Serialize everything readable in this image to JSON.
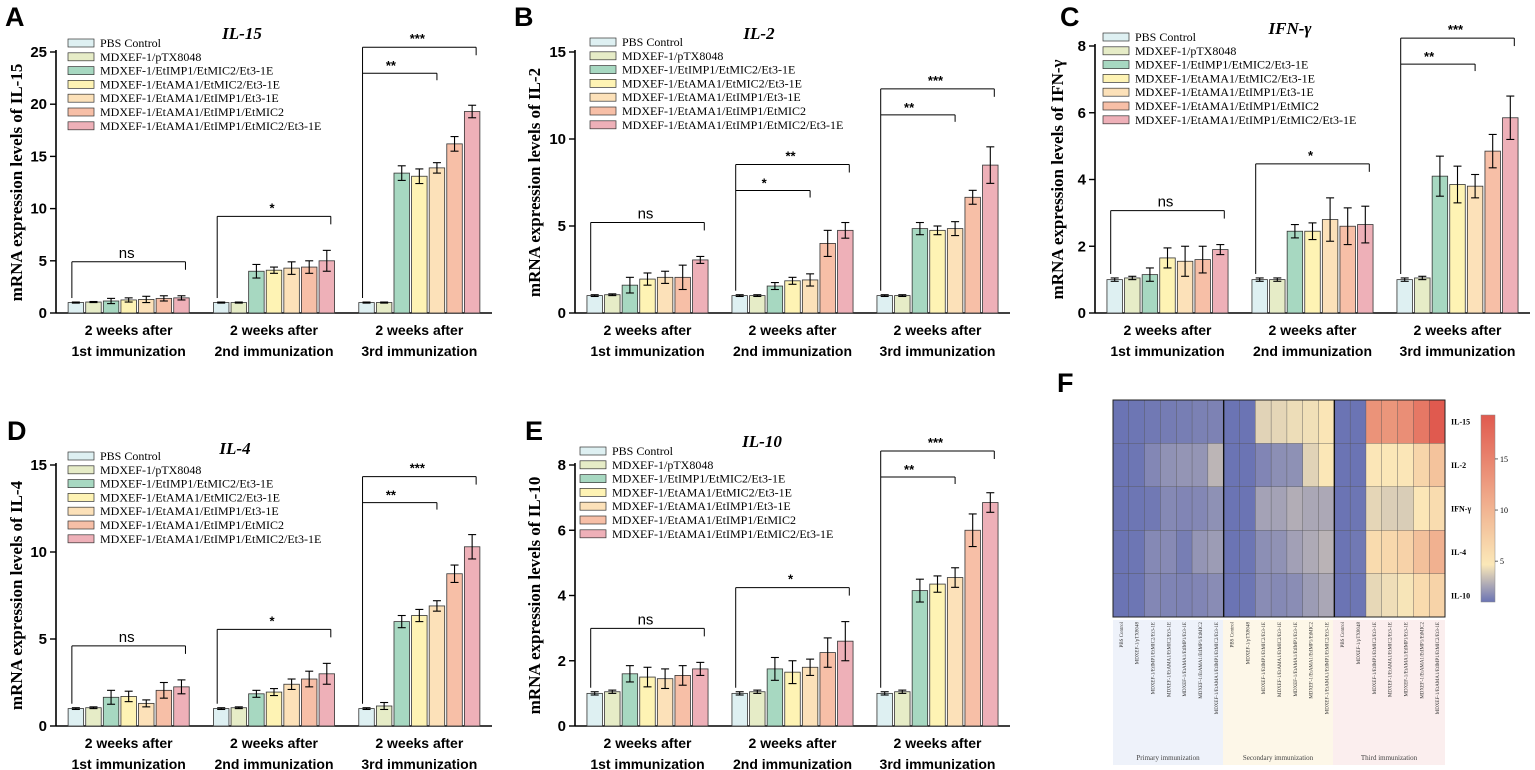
{
  "colors": {
    "groups": [
      "#def0f2",
      "#e6ecc7",
      "#a7d8c1",
      "#fef3b4",
      "#fce1b9",
      "#f7bfa7",
      "#eeb0b8"
    ],
    "heatmap_low": "#6b74b4",
    "heatmap_mid": "#fbe8b8",
    "heatmap_high": "#e05a4f"
  },
  "group_labels": [
    "PBS Control",
    "MDXEF-1/pTX8048",
    "MDXEF-1/EtIMP1/EtMIC2/Et3-1E",
    "MDXEF-1/EtAMA1/EtMIC2/Et3-1E",
    "MDXEF-1/EtAMA1/EtIMP1/Et3-1E",
    "MDXEF-1/EtAMA1/EtIMP1/EtMIC2",
    "MDXEF-1/EtAMA1/EtIMP1/EtMIC2/Et3-1E"
  ],
  "chart_data": [
    {
      "panel": "A",
      "type": "bar",
      "title": "IL-15",
      "ylabel": "mRNA expression levels of IL-15",
      "ylim": [
        0,
        25
      ],
      "yticks": [
        0,
        5,
        10,
        15,
        20,
        25
      ],
      "categories": [
        [
          "2 weeks after",
          "1st immunization"
        ],
        [
          "2 weeks after",
          "2nd immunization"
        ],
        [
          "2 weeks after",
          "3rd immunization"
        ]
      ],
      "values": [
        [
          1.0,
          1.05,
          1.15,
          1.25,
          1.3,
          1.4,
          1.45
        ],
        [
          1.0,
          1.0,
          4.0,
          4.1,
          4.3,
          4.4,
          5.0
        ],
        [
          1.0,
          1.0,
          13.4,
          13.1,
          13.9,
          16.2,
          19.3
        ]
      ],
      "errors": [
        [
          0.05,
          0.05,
          0.25,
          0.2,
          0.3,
          0.25,
          0.2
        ],
        [
          0.05,
          0.05,
          0.65,
          0.3,
          0.6,
          0.6,
          1.0
        ],
        [
          0.05,
          0.05,
          0.7,
          0.7,
          0.5,
          0.7,
          0.6
        ]
      ],
      "significance": [
        "ns",
        "*",
        "***"
      ],
      "inner_significance": [
        null,
        null,
        "**"
      ]
    },
    {
      "panel": "B",
      "type": "bar",
      "title": "IL-2",
      "ylabel": "mRNA expression levels of IL-2",
      "ylim": [
        0,
        15
      ],
      "yticks": [
        0,
        5,
        10,
        15
      ],
      "categories": [
        [
          "2 weeks after",
          "1st immunization"
        ],
        [
          "2 weeks after",
          "2nd immunization"
        ],
        [
          "2 weeks after",
          "3rd immunization"
        ]
      ],
      "values": [
        [
          1.0,
          1.05,
          1.6,
          1.95,
          2.05,
          2.05,
          3.05
        ],
        [
          1.0,
          1.0,
          1.55,
          1.85,
          1.9,
          4.0,
          4.75
        ],
        [
          1.0,
          1.0,
          4.85,
          4.75,
          4.85,
          6.65,
          8.5
        ]
      ],
      "errors": [
        [
          0.05,
          0.05,
          0.45,
          0.35,
          0.35,
          0.7,
          0.2
        ],
        [
          0.05,
          0.05,
          0.2,
          0.2,
          0.35,
          0.75,
          0.45
        ],
        [
          0.05,
          0.05,
          0.35,
          0.25,
          0.4,
          0.4,
          1.05
        ]
      ],
      "significance": [
        "ns",
        "**",
        "***"
      ],
      "inner_significance": [
        null,
        "*",
        "**"
      ]
    },
    {
      "panel": "C",
      "type": "bar",
      "title": "IFN-γ",
      "ylabel": "mRNA expression levels of IFN-γ",
      "ylim": [
        0,
        8
      ],
      "yticks": [
        0,
        2,
        4,
        6,
        8
      ],
      "categories": [
        [
          "2 weeks after",
          "1st immunization"
        ],
        [
          "2 weeks after",
          "2nd immunization"
        ],
        [
          "2 weeks after",
          "3rd immunization"
        ]
      ],
      "values": [
        [
          1.0,
          1.05,
          1.15,
          1.65,
          1.55,
          1.6,
          1.9
        ],
        [
          1.0,
          1.0,
          2.45,
          2.45,
          2.8,
          2.6,
          2.65
        ],
        [
          1.0,
          1.05,
          4.1,
          3.85,
          3.8,
          4.85,
          5.85
        ]
      ],
      "errors": [
        [
          0.05,
          0.05,
          0.2,
          0.3,
          0.45,
          0.4,
          0.15
        ],
        [
          0.05,
          0.05,
          0.2,
          0.25,
          0.65,
          0.55,
          0.55
        ],
        [
          0.05,
          0.05,
          0.6,
          0.55,
          0.35,
          0.5,
          0.65
        ]
      ],
      "significance": [
        "ns",
        "*",
        "***"
      ],
      "inner_significance": [
        null,
        null,
        "**"
      ]
    },
    {
      "panel": "D",
      "type": "bar",
      "title": "IL-4",
      "ylabel": "mRNA expression levels of IL-4",
      "ylim": [
        0,
        15
      ],
      "yticks": [
        0,
        5,
        10,
        15
      ],
      "categories": [
        [
          "2 weeks after",
          "1st immunization"
        ],
        [
          "2 weeks after",
          "2nd immunization"
        ],
        [
          "2 weeks after",
          "3rd immunization"
        ]
      ],
      "values": [
        [
          1.0,
          1.05,
          1.65,
          1.7,
          1.3,
          2.05,
          2.25
        ],
        [
          1.0,
          1.05,
          1.85,
          1.95,
          2.4,
          2.7,
          3.0
        ],
        [
          1.0,
          1.15,
          6.0,
          6.35,
          6.9,
          8.75,
          10.3
        ]
      ],
      "errors": [
        [
          0.05,
          0.05,
          0.4,
          0.3,
          0.2,
          0.45,
          0.4
        ],
        [
          0.05,
          0.05,
          0.2,
          0.2,
          0.3,
          0.45,
          0.6
        ],
        [
          0.05,
          0.2,
          0.35,
          0.35,
          0.3,
          0.5,
          0.7
        ]
      ],
      "significance": [
        "ns",
        "*",
        "***"
      ],
      "inner_significance": [
        null,
        null,
        "**"
      ]
    },
    {
      "panel": "E",
      "type": "bar",
      "title": "IL-10",
      "ylabel": "mRNA expression levels of IL-10",
      "ylim": [
        0,
        8
      ],
      "yticks": [
        0,
        2,
        4,
        6,
        8
      ],
      "categories": [
        [
          "2 weeks after",
          "1st immunization"
        ],
        [
          "2 weeks after",
          "2nd immunization"
        ],
        [
          "2 weeks after",
          "3rd immunization"
        ]
      ],
      "values": [
        [
          1.0,
          1.05,
          1.6,
          1.5,
          1.45,
          1.55,
          1.75
        ],
        [
          1.0,
          1.05,
          1.75,
          1.65,
          1.8,
          2.25,
          2.6
        ],
        [
          1.0,
          1.05,
          4.15,
          4.35,
          4.55,
          6.0,
          6.85
        ]
      ],
      "errors": [
        [
          0.05,
          0.05,
          0.25,
          0.3,
          0.3,
          0.3,
          0.2
        ],
        [
          0.05,
          0.05,
          0.35,
          0.35,
          0.25,
          0.45,
          0.6
        ],
        [
          0.05,
          0.05,
          0.35,
          0.25,
          0.3,
          0.5,
          0.3
        ]
      ],
      "significance": [
        "ns",
        "*",
        "***"
      ],
      "inner_significance": [
        null,
        null,
        "**"
      ]
    },
    {
      "panel": "F",
      "type": "heatmap",
      "rows": [
        "IL-15",
        "IL-2",
        "IFN-γ",
        "IL-4",
        "IL-10"
      ],
      "columns": [
        "PBS Control",
        "MDXEF-1/pTX8048",
        "MDXEF-1/EtIMP1/EtMIC2/Et3-1E",
        "MDXEF-1/EtAMA1/EtMIC2/Et3-1E",
        "MDXEF-1/EtAMA1/EtIMP1/Et3-1E",
        "MDXEF-1/EtAMA1/EtIMP1/EtMIC2",
        "MDXEF-1/EtAMA1/EtIMP1/EtMIC2/Et3-1E"
      ],
      "sections": [
        "Primary immunization",
        "Secondary immunization",
        "Third immunization"
      ],
      "colorbar_ticks": [
        5,
        10,
        15
      ],
      "color_range": [
        1,
        19.3
      ]
    }
  ]
}
